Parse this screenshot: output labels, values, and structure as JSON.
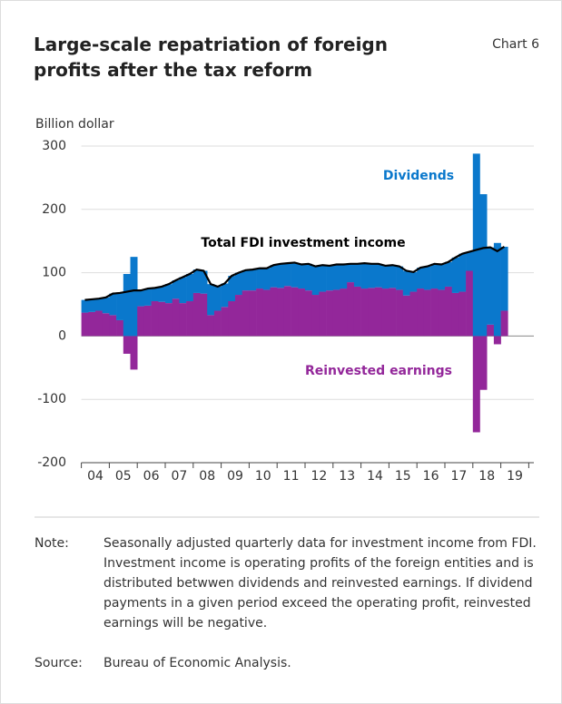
{
  "chart_data": {
    "type": "bar",
    "stacked": true,
    "title": "Large-scale repatriation of foreign profits after the tax reform",
    "label": "Chart 6",
    "ylabel": "Billion dollar",
    "categories": [
      "04",
      null,
      null,
      null,
      "05",
      null,
      null,
      null,
      "06",
      null,
      null,
      null,
      "07",
      null,
      null,
      null,
      "08",
      null,
      null,
      null,
      "09",
      null,
      null,
      null,
      "10",
      null,
      null,
      null,
      "11",
      null,
      null,
      null,
      "12",
      null,
      null,
      null,
      "13",
      null,
      null,
      null,
      "14",
      null,
      null,
      null,
      "15",
      null,
      null,
      null,
      "16",
      null,
      null,
      null,
      "17",
      null,
      null,
      null,
      "18",
      null,
      null,
      null,
      "19"
    ],
    "series": [
      {
        "name": "Dividends",
        "color": "#0a78cc",
        "values": [
          20,
          20,
          19,
          25,
          34,
          43,
          98,
          125,
          25,
          27,
          21,
          24,
          30,
          29,
          41,
          43,
          37,
          36,
          49,
          38,
          37,
          40,
          35,
          32,
          33,
          32,
          34,
          35,
          38,
          36,
          39,
          38,
          42,
          45,
          42,
          39,
          40,
          38,
          29,
          36,
          40,
          38,
          37,
          36,
          36,
          37,
          39,
          31,
          33,
          37,
          39,
          40,
          39,
          56,
          60,
          30,
          288,
          224,
          122,
          147,
          101
        ]
      },
      {
        "name": "Reinvested earnings",
        "color": "#93279a",
        "values": [
          37,
          38,
          40,
          36,
          33,
          25,
          -28,
          -53,
          47,
          48,
          55,
          54,
          52,
          59,
          52,
          55,
          68,
          67,
          33,
          40,
          46,
          55,
          65,
          72,
          72,
          75,
          73,
          77,
          76,
          79,
          77,
          75,
          72,
          65,
          70,
          72,
          73,
          75,
          85,
          78,
          75,
          76,
          77,
          75,
          76,
          73,
          64,
          70,
          75,
          73,
          75,
          73,
          78,
          68,
          70,
          103,
          -152,
          -85,
          18,
          -13,
          40
        ]
      },
      {
        "name": "Total FDI investment income",
        "type": "line",
        "color": "#000000",
        "values": [
          57,
          58,
          59,
          61,
          67,
          68,
          70,
          72,
          72,
          75,
          76,
          78,
          82,
          88,
          93,
          98,
          105,
          103,
          82,
          78,
          83,
          95,
          100,
          104,
          105,
          107,
          107,
          112,
          114,
          115,
          116,
          113,
          114,
          110,
          112,
          111,
          113,
          113,
          114,
          114,
          115,
          114,
          114,
          111,
          112,
          110,
          103,
          101,
          108,
          110,
          114,
          113,
          117,
          124,
          130,
          133,
          136,
          139,
          140,
          134,
          141
        ]
      }
    ],
    "ylim": [
      -200,
      300
    ],
    "yticks": [
      -200,
      -100,
      0,
      100,
      200,
      300
    ],
    "grid": true,
    "note_label": "Note:",
    "note": "Seasonally adjusted quarterly data for investment income from FDI. Investment income is operating profits of the foreign entities and is distributed betwwen dividends and reinvested earnings. If dividend payments in a given period exceed the operating profit, reinvested earnings will be negative.",
    "source_label": "Source:",
    "source": "Bureau of Economic Analysis."
  }
}
